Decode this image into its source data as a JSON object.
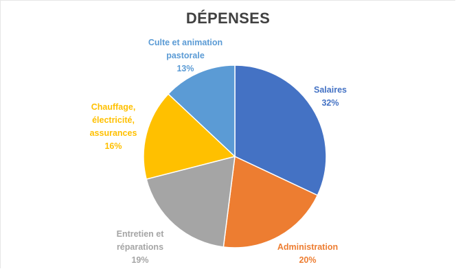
{
  "chart_data": {
    "type": "pie",
    "title": "DÉPENSES",
    "slices": [
      {
        "label": [
          "Salaires"
        ],
        "percent_label": "32%",
        "value": 32,
        "color": "#4472C4"
      },
      {
        "label": [
          "Administration"
        ],
        "percent_label": "20%",
        "value": 20,
        "color": "#ED7D31"
      },
      {
        "label": [
          "Entretien et",
          "réparations"
        ],
        "percent_label": "19%",
        "value": 19,
        "color": "#A5A5A5"
      },
      {
        "label": [
          "Chauffage,",
          "électricité,",
          "assurances"
        ],
        "percent_label": "16%",
        "value": 16,
        "color": "#FFC000"
      },
      {
        "label": [
          "Culte et animation",
          "pastorale"
        ],
        "percent_label": "13%",
        "value": 13,
        "color": "#5B9BD5"
      }
    ],
    "start_angle_deg": 0,
    "direction": "clockwise",
    "legend": "none"
  }
}
